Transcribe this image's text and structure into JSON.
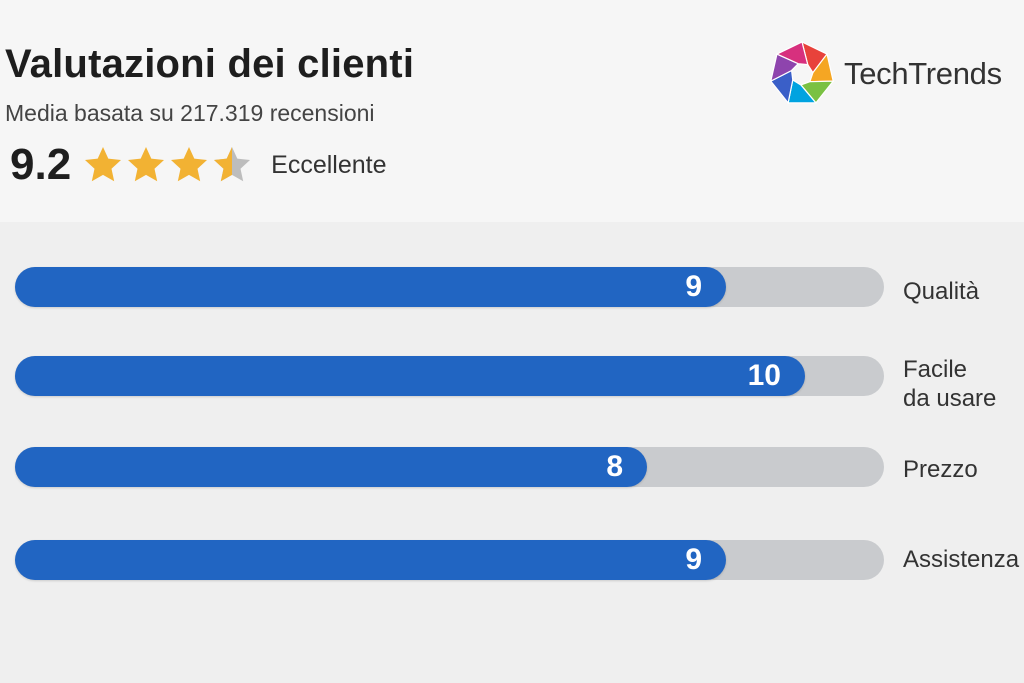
{
  "header": {
    "title": "Valutazioni dei clienti",
    "subtitle": "Media basata su 217.319 recensioni",
    "score": "9.2",
    "score_label": "Eccellente",
    "stars": {
      "filled": 3,
      "half": 1,
      "total": 4
    },
    "star_color": "#f2b233",
    "star_empty_color": "#bdbdbd"
  },
  "logo": {
    "text": "TechTrends",
    "colors": [
      "#e8423b",
      "#f5a623",
      "#7ac143",
      "#00a3e0",
      "#3a5fc8",
      "#8e44ad",
      "#d7307e"
    ]
  },
  "chart_data": {
    "type": "bar",
    "orientation": "horizontal",
    "categories": [
      "Qualità",
      "Facile da usare",
      "Prezzo",
      "Assistenza"
    ],
    "category_lines": [
      [
        "Qualità"
      ],
      [
        "Facile",
        "da usare"
      ],
      [
        "Prezzo"
      ],
      [
        "Assistenza"
      ]
    ],
    "values": [
      9,
      10,
      8,
      9
    ],
    "value_labels": [
      "9",
      "10",
      "8",
      "9"
    ],
    "xlim": [
      0,
      11
    ],
    "bar_color": "#2165c2",
    "track_color": "#c9cbce",
    "grid": false,
    "legend": "none"
  }
}
